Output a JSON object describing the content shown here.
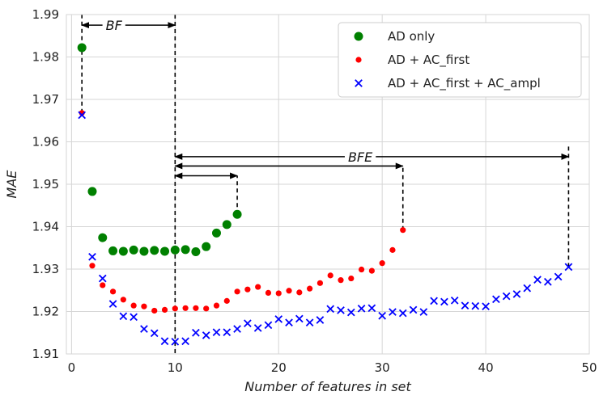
{
  "chart_data": {
    "type": "scatter",
    "xlabel": "Number of features in set",
    "ylabel": "MAE",
    "xlim": [
      -0.5,
      50
    ],
    "ylim": [
      1.91,
      1.99
    ],
    "xticks": [
      0,
      10,
      20,
      30,
      40,
      50
    ],
    "yticks": [
      1.91,
      1.92,
      1.93,
      1.94,
      1.95,
      1.96,
      1.97,
      1.98,
      1.99
    ],
    "xtick_labels": [
      "0",
      "10",
      "20",
      "30",
      "40",
      "50"
    ],
    "ytick_labels": [
      "1.91",
      "1.92",
      "1.93",
      "1.94",
      "1.95",
      "1.96",
      "1.97",
      "1.98",
      "1.99"
    ],
    "grid": true,
    "legend_position": "top-right",
    "series": [
      {
        "name": "AD only",
        "color": "#008000",
        "marker": "circle-large",
        "x": [
          1,
          2,
          3,
          4,
          5,
          6,
          7,
          8,
          9,
          10,
          11,
          12,
          13,
          14,
          15,
          16
        ],
        "y": [
          1.9822,
          1.9483,
          1.9374,
          1.9343,
          1.9342,
          1.9345,
          1.9342,
          1.9344,
          1.9342,
          1.9345,
          1.9346,
          1.9341,
          1.9353,
          1.9385,
          1.9405,
          1.9429
        ]
      },
      {
        "name": "AD + AC_first",
        "color": "#ff0000",
        "marker": "circle-small",
        "x": [
          1,
          2,
          3,
          4,
          5,
          6,
          7,
          8,
          9,
          10,
          11,
          12,
          13,
          14,
          15,
          16,
          17,
          18,
          19,
          20,
          21,
          22,
          23,
          24,
          25,
          26,
          27,
          28,
          29,
          30,
          31,
          32
        ],
        "y": [
          1.9668,
          1.9308,
          1.9262,
          1.9247,
          1.9228,
          1.9214,
          1.9212,
          1.9202,
          1.9204,
          1.9207,
          1.9208,
          1.9208,
          1.9207,
          1.9214,
          1.9225,
          1.9247,
          1.9252,
          1.9258,
          1.9244,
          1.9243,
          1.9249,
          1.9245,
          1.9254,
          1.9267,
          1.9285,
          1.9274,
          1.9278,
          1.9299,
          1.9296,
          1.9314,
          1.9345,
          1.9392
        ]
      },
      {
        "name": "AD + AC_first  + AC_ampl",
        "color": "#0000ff",
        "marker": "x",
        "x": [
          1,
          2,
          3,
          4,
          5,
          6,
          7,
          8,
          9,
          10,
          11,
          12,
          13,
          14,
          15,
          16,
          17,
          18,
          19,
          20,
          21,
          22,
          23,
          24,
          25,
          26,
          27,
          28,
          29,
          30,
          31,
          32,
          33,
          34,
          35,
          36,
          37,
          38,
          39,
          40,
          41,
          42,
          43,
          44,
          45,
          46,
          47,
          48
        ],
        "y": [
          1.9663,
          1.9329,
          1.9278,
          1.9218,
          1.9189,
          1.9187,
          1.9159,
          1.9149,
          1.913,
          1.9129,
          1.913,
          1.915,
          1.9144,
          1.9151,
          1.9151,
          1.9159,
          1.9172,
          1.9161,
          1.9168,
          1.9182,
          1.9174,
          1.9183,
          1.9174,
          1.918,
          1.9206,
          1.9203,
          1.9198,
          1.9207,
          1.9208,
          1.919,
          1.9199,
          1.9196,
          1.9204,
          1.9199,
          1.9225,
          1.9223,
          1.9226,
          1.9214,
          1.9213,
          1.9212,
          1.9229,
          1.9236,
          1.9241,
          1.9255,
          1.9275,
          1.927,
          1.9282,
          1.9305
        ]
      }
    ],
    "annotations": [
      {
        "label": "BF",
        "x_from": 1,
        "x_to": 10,
        "y": 1.9875,
        "label_x": 3.3
      },
      {
        "label": "BFE",
        "x_from": 10,
        "x_to": 48,
        "y": 1.9565,
        "label_x": 26.7
      },
      {
        "label": "",
        "x_from": 10,
        "x_to": 32,
        "y": 1.9543
      },
      {
        "label": "",
        "x_from": 10,
        "x_to": 16,
        "y": 1.952
      }
    ],
    "guides": [
      {
        "x": 1,
        "y_from": 1.9668,
        "y_to": 1.9899
      },
      {
        "x": 10,
        "y_from": 1.9102,
        "y_to": 1.9899
      },
      {
        "x": 16,
        "y_from": 1.9429,
        "y_to": 1.952
      },
      {
        "x": 32,
        "y_from": 1.9392,
        "y_to": 1.9543
      },
      {
        "x": 48,
        "y_from": 1.9305,
        "y_to": 1.9593
      }
    ]
  }
}
